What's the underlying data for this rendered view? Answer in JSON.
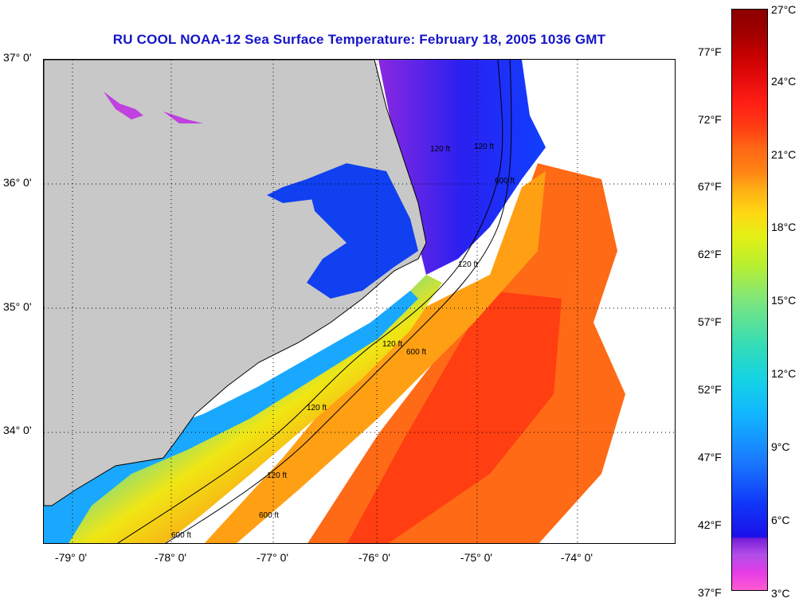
{
  "title": "RU COOL  NOAA-12  Sea Surface Temperature:  February 18, 2005 1036 GMT",
  "map": {
    "latitude_labels": [
      "37° 0'",
      "36° 0'",
      "35° 0'",
      "34° 0'"
    ],
    "longitude_labels": [
      "-79° 0'",
      "-78° 0'",
      "-77° 0'",
      "-76° 0'",
      "-75° 0'",
      "-74° 0'"
    ],
    "contour_labels": [
      "120 ft",
      "600 ft",
      "120 ft",
      "120 ft",
      "600 ft",
      "120 ft",
      "600 ft",
      "120 ft",
      "600 ft",
      "120 ft"
    ],
    "colors": {
      "land": "#c8c8c8",
      "cloud": "#ffffff",
      "contour": "#000000",
      "grid": "#000000"
    }
  },
  "colorbar": {
    "celsius_labels": [
      "27°C",
      "24°C",
      "21°C",
      "18°C",
      "15°C",
      "12°C",
      "9°C",
      "6°C",
      "3°C"
    ],
    "fahrenheit_labels": [
      "77°F",
      "72°F",
      "67°F",
      "62°F",
      "57°F",
      "52°F",
      "47°F",
      "42°F",
      "37°F"
    ],
    "range_celsius": [
      3,
      27
    ],
    "range_fahrenheit": [
      37,
      80.6
    ]
  }
}
